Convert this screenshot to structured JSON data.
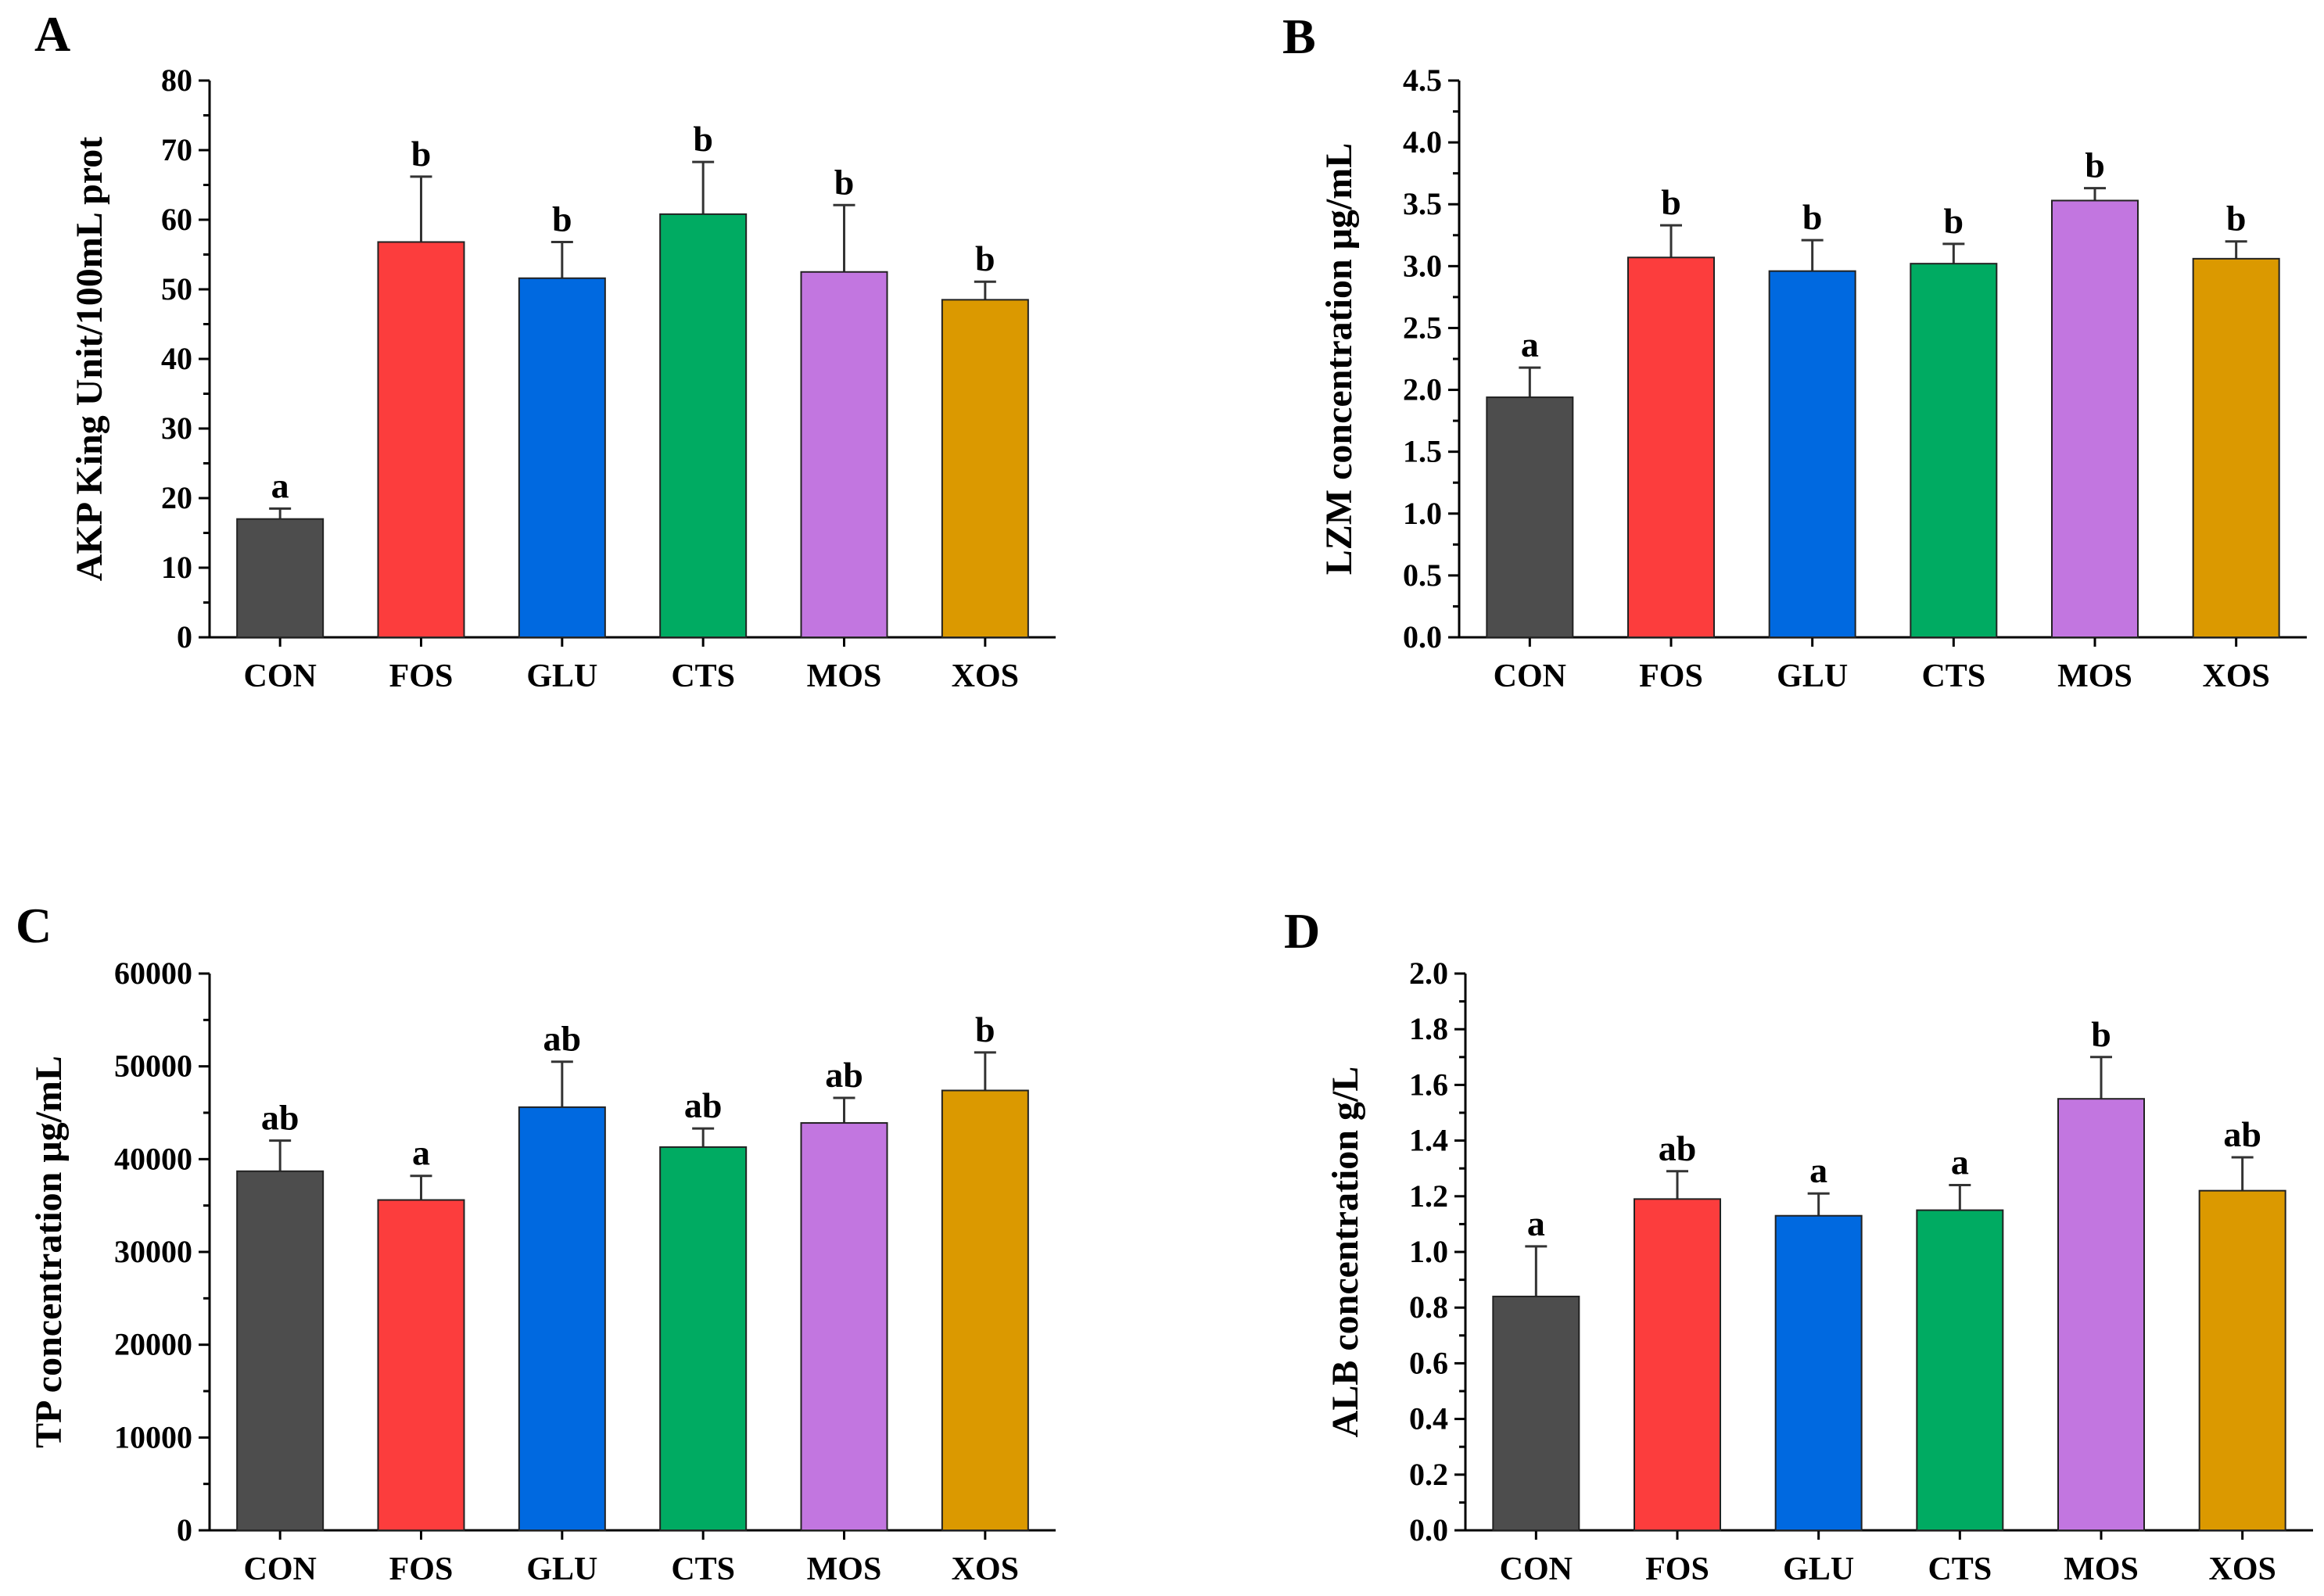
{
  "figure": {
    "categories": [
      "CON",
      "FOS",
      "GLU",
      "CTS",
      "MOS",
      "XOS"
    ],
    "colors": {
      "CON": "#4d4d4d",
      "FOS": "#fc3d3d",
      "GLU": "#0069e0",
      "CTS": "#00ab62",
      "MOS": "#c276e0",
      "XOS": "#db9900"
    }
  },
  "chart_data": [
    {
      "panel": "A",
      "type": "bar",
      "categories": [
        "CON",
        "FOS",
        "GLU",
        "CTS",
        "MOS",
        "XOS"
      ],
      "values": [
        17,
        56.8,
        51.6,
        60.8,
        52.5,
        48.5
      ],
      "errors": [
        1.5,
        9.4,
        5.2,
        7.5,
        9.6,
        2.6
      ],
      "letters": [
        "a",
        "b",
        "b",
        "b",
        "b",
        "b"
      ],
      "ylabel": "AKP King Unit/100mL prot",
      "ylim": [
        0,
        80
      ],
      "ticks": [
        0,
        10,
        20,
        30,
        40,
        50,
        60,
        70,
        80
      ],
      "tick_labels": [
        "0",
        "10",
        "20",
        "30",
        "40",
        "50",
        "60",
        "70",
        "80"
      ]
    },
    {
      "panel": "B",
      "type": "bar",
      "categories": [
        "CON",
        "FOS",
        "GLU",
        "CTS",
        "MOS",
        "XOS"
      ],
      "values": [
        1.94,
        3.07,
        2.96,
        3.02,
        3.53,
        3.06
      ],
      "errors": [
        0.24,
        0.26,
        0.25,
        0.16,
        0.1,
        0.14
      ],
      "letters": [
        "a",
        "b",
        "b",
        "b",
        "b",
        "b"
      ],
      "ylabel": "LZM concentration μg/mL",
      "ylim": [
        0,
        4.5
      ],
      "ticks": [
        0,
        0.5,
        1,
        1.5,
        2,
        2.5,
        3,
        3.5,
        4,
        4.5
      ],
      "tick_labels": [
        "0.0",
        "0.5",
        "1.0",
        "1.5",
        "2.0",
        "2.5",
        "3.0",
        "3.5",
        "4.0",
        "4.5"
      ]
    },
    {
      "panel": "C",
      "type": "bar",
      "categories": [
        "CON",
        "FOS",
        "GLU",
        "CTS",
        "MOS",
        "XOS"
      ],
      "values": [
        38700,
        35600,
        45600,
        41300,
        43900,
        47400
      ],
      "errors": [
        3300,
        2600,
        4900,
        2000,
        2700,
        4100
      ],
      "letters": [
        "ab",
        "a",
        "ab",
        "ab",
        "ab",
        "b"
      ],
      "ylabel": "TP concentration μg/mL",
      "ylim": [
        0,
        60000
      ],
      "ticks": [
        0,
        10000,
        20000,
        30000,
        40000,
        50000,
        60000
      ],
      "tick_labels": [
        "0",
        "10000",
        "20000",
        "30000",
        "40000",
        "50000",
        "60000"
      ]
    },
    {
      "panel": "D",
      "type": "bar",
      "categories": [
        "CON",
        "FOS",
        "GLU",
        "CTS",
        "MOS",
        "XOS"
      ],
      "values": [
        0.84,
        1.19,
        1.13,
        1.15,
        1.55,
        1.22
      ],
      "errors": [
        0.18,
        0.1,
        0.08,
        0.09,
        0.15,
        0.12
      ],
      "letters": [
        "a",
        "ab",
        "a",
        "a",
        "b",
        "ab"
      ],
      "ylabel": "ALB concentration g/L",
      "ylim": [
        0,
        2.0
      ],
      "ticks": [
        0,
        0.2,
        0.4,
        0.6,
        0.8,
        1,
        1.2,
        1.4,
        1.6,
        1.8,
        2
      ],
      "tick_labels": [
        "0.0",
        "0.2",
        "0.4",
        "0.6",
        "0.8",
        "1.0",
        "1.2",
        "1.4",
        "1.6",
        "1.8",
        "2.0"
      ]
    }
  ]
}
